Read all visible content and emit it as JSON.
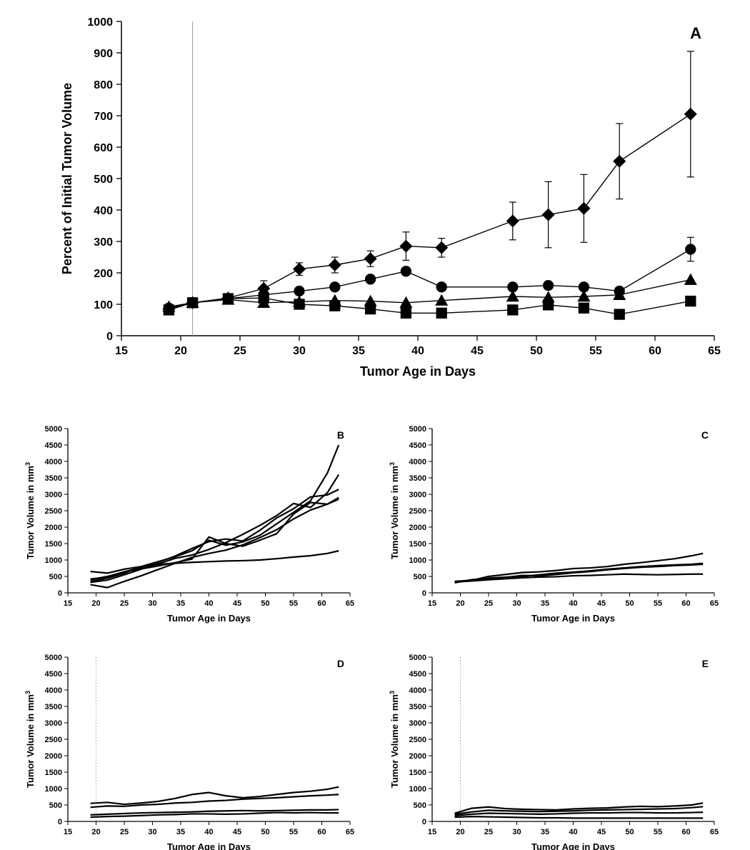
{
  "panelA": {
    "type": "line-with-errorbars",
    "label": "A",
    "label_fontsize": 22,
    "xlabel": "Tumor Age in Days",
    "ylabel": "Percent of Initial Tumor Volume",
    "xlabel_fontsize": 18,
    "ylabel_fontsize": 18,
    "tick_fontsize": 16,
    "xlim": [
      15,
      65
    ],
    "ylim": [
      0,
      1000
    ],
    "xtick_step": 5,
    "ytick_step": 100,
    "vline_x": 21,
    "vline_color": "#9a9a9a",
    "background_color": "#ffffff",
    "axis_color": "#000000",
    "marker_size": 9,
    "line_width": 1.4,
    "series": [
      {
        "name": "diamond",
        "marker": "diamond",
        "color": "#000000",
        "x": [
          19,
          21,
          24,
          27,
          30,
          33,
          36,
          39,
          42,
          48,
          51,
          54,
          57,
          63
        ],
        "y": [
          85,
          105,
          120,
          150,
          212,
          225,
          245,
          285,
          280,
          365,
          385,
          405,
          555,
          705
        ],
        "err": [
          0,
          0,
          0,
          25,
          20,
          25,
          25,
          45,
          30,
          60,
          105,
          108,
          120,
          200
        ]
      },
      {
        "name": "circle",
        "marker": "circle",
        "color": "#000000",
        "x": [
          19,
          21,
          24,
          27,
          30,
          33,
          36,
          39,
          42,
          48,
          51,
          54,
          57,
          63
        ],
        "y": [
          88,
          105,
          118,
          130,
          142,
          155,
          180,
          205,
          155,
          155,
          160,
          155,
          142,
          275
        ],
        "err": [
          0,
          0,
          0,
          0,
          0,
          0,
          0,
          0,
          0,
          0,
          0,
          0,
          0,
          38
        ]
      },
      {
        "name": "triangle",
        "marker": "triangle",
        "color": "#000000",
        "x": [
          19,
          21,
          24,
          27,
          30,
          33,
          36,
          39,
          42,
          48,
          51,
          54,
          57,
          63
        ],
        "y": [
          92,
          105,
          115,
          105,
          108,
          112,
          110,
          105,
          112,
          125,
          122,
          125,
          130,
          178
        ],
        "err": [
          0,
          0,
          0,
          0,
          0,
          0,
          0,
          0,
          0,
          0,
          0,
          0,
          0,
          0
        ]
      },
      {
        "name": "square",
        "marker": "square",
        "color": "#000000",
        "x": [
          19,
          21,
          24,
          27,
          30,
          33,
          36,
          39,
          42,
          48,
          51,
          54,
          57,
          63
        ],
        "y": [
          82,
          105,
          118,
          120,
          100,
          95,
          85,
          72,
          72,
          82,
          98,
          88,
          68,
          110
        ],
        "err": [
          0,
          0,
          0,
          0,
          0,
          0,
          0,
          0,
          0,
          0,
          0,
          0,
          0,
          0
        ]
      }
    ]
  },
  "smallPanels": {
    "xlabel": "Tumor Age in Days",
    "ylabel": "Tumor Volume in mm",
    "ylabel_sup": "3",
    "xlabel_fontsize": 13,
    "ylabel_fontsize": 13,
    "tick_fontsize": 11,
    "label_fontsize": 14,
    "xlim": [
      15,
      65
    ],
    "ylim": [
      0,
      5000
    ],
    "xtick_step": 5,
    "ytick_step": 500,
    "background_color": "#ffffff",
    "axis_color": "#000000",
    "line_color": "#000000",
    "line_width": 2.2,
    "panels": [
      {
        "label": "B",
        "vline_x": null,
        "series": [
          {
            "x": [
              19,
              22,
              25,
              28,
              31,
              34,
              37,
              40,
              43,
              46,
              49,
              52,
              55,
              58,
              61,
              63
            ],
            "y": [
              350,
              450,
              600,
              800,
              950,
              1100,
              1280,
              1600,
              1450,
              1550,
              1750,
              2100,
              2450,
              2800,
              3650,
              4500
            ]
          },
          {
            "x": [
              19,
              22,
              25,
              28,
              31,
              34,
              37,
              40,
              43,
              46,
              49,
              52,
              55,
              58,
              61,
              63
            ],
            "y": [
              320,
              390,
              550,
              720,
              880,
              1050,
              1150,
              1320,
              1530,
              1780,
              2050,
              2350,
              2720,
              2600,
              3050,
              3600
            ]
          },
          {
            "x": [
              19,
              22,
              25,
              28,
              31,
              34,
              37,
              40,
              43,
              46,
              49,
              52,
              55,
              58,
              61,
              63
            ],
            "y": [
              420,
              480,
              640,
              770,
              930,
              1120,
              1350,
              1560,
              1640,
              1580,
              1900,
              2280,
              2560,
              2920,
              2980,
              3150
            ]
          },
          {
            "x": [
              19,
              22,
              25,
              28,
              31,
              34,
              37,
              40,
              43,
              46,
              49,
              52,
              55,
              58,
              61,
              63
            ],
            "y": [
              250,
              160,
              350,
              520,
              710,
              900,
              1080,
              1200,
              1300,
              1460,
              1680,
              1920,
              2250,
              2520,
              2700,
              2850
            ]
          },
          {
            "x": [
              19,
              22,
              25,
              28,
              31,
              34,
              37,
              40,
              43,
              46,
              49,
              52,
              55,
              58,
              61,
              63
            ],
            "y": [
              650,
              600,
              720,
              800,
              870,
              900,
              930,
              950,
              970,
              980,
              1000,
              1040,
              1090,
              1130,
              1200,
              1280
            ]
          },
          {
            "x": [
              19,
              22,
              25,
              28,
              31,
              34,
              37,
              40,
              43,
              46,
              49,
              52,
              55,
              58,
              61,
              63
            ],
            "y": [
              400,
              500,
              640,
              730,
              820,
              920,
              1030,
              1700,
              1500,
              1420,
              1600,
              1800,
              2400,
              2750,
              2700,
              2900
            ]
          }
        ]
      },
      {
        "label": "C",
        "vline_x": null,
        "series": [
          {
            "x": [
              19,
              22,
              25,
              28,
              31,
              34,
              37,
              40,
              43,
              46,
              49,
              52,
              55,
              58,
              61,
              63
            ],
            "y": [
              350,
              380,
              500,
              560,
              620,
              640,
              680,
              740,
              760,
              800,
              870,
              920,
              980,
              1040,
              1130,
              1200
            ]
          },
          {
            "x": [
              19,
              22,
              25,
              28,
              31,
              34,
              37,
              40,
              43,
              46,
              49,
              52,
              55,
              58,
              61,
              63
            ],
            "y": [
              320,
              400,
              450,
              480,
              500,
              550,
              600,
              630,
              670,
              720,
              760,
              800,
              830,
              850,
              870,
              900
            ]
          },
          {
            "x": [
              19,
              22,
              25,
              28,
              31,
              34,
              37,
              40,
              43,
              46,
              49,
              52,
              55,
              58,
              61,
              63
            ],
            "y": [
              330,
              360,
              400,
              430,
              460,
              480,
              490,
              520,
              530,
              550,
              570,
              560,
              550,
              560,
              570,
              570
            ]
          },
          {
            "x": [
              19,
              22,
              25,
              28,
              31,
              34,
              37,
              40,
              43,
              46,
              49,
              52,
              55,
              58,
              61,
              63
            ],
            "y": [
              310,
              390,
              420,
              470,
              530,
              520,
              560,
              610,
              650,
              700,
              740,
              780,
              800,
              830,
              850,
              870
            ]
          }
        ]
      },
      {
        "label": "D",
        "vline_x": 20,
        "series": [
          {
            "x": [
              19,
              22,
              25,
              28,
              31,
              34,
              37,
              40,
              43,
              46,
              49,
              52,
              55,
              58,
              61,
              63
            ],
            "y": [
              550,
              580,
              520,
              560,
              610,
              700,
              820,
              880,
              780,
              720,
              760,
              820,
              880,
              920,
              980,
              1050
            ]
          },
          {
            "x": [
              19,
              22,
              25,
              28,
              31,
              34,
              37,
              40,
              43,
              46,
              49,
              52,
              55,
              58,
              61,
              63
            ],
            "y": [
              430,
              470,
              460,
              500,
              520,
              560,
              580,
              620,
              640,
              680,
              700,
              720,
              750,
              780,
              800,
              820
            ]
          },
          {
            "x": [
              19,
              22,
              25,
              28,
              31,
              34,
              37,
              40,
              43,
              46,
              49,
              52,
              55,
              58,
              61,
              63
            ],
            "y": [
              200,
              220,
              240,
              260,
              270,
              280,
              290,
              310,
              320,
              330,
              320,
              330,
              340,
              350,
              350,
              360
            ]
          },
          {
            "x": [
              19,
              22,
              25,
              28,
              31,
              34,
              37,
              40,
              43,
              46,
              49,
              52,
              55,
              58,
              61,
              63
            ],
            "y": [
              130,
              150,
              160,
              180,
              200,
              210,
              230,
              230,
              220,
              230,
              250,
              270,
              260,
              270,
              260,
              260
            ]
          }
        ]
      },
      {
        "label": "E",
        "vline_x": 20,
        "series": [
          {
            "x": [
              19,
              22,
              25,
              28,
              31,
              34,
              37,
              40,
              43,
              46,
              49,
              52,
              55,
              58,
              61,
              63
            ],
            "y": [
              250,
              400,
              440,
              390,
              370,
              360,
              350,
              380,
              400,
              410,
              440,
              460,
              450,
              470,
              500,
              560
            ]
          },
          {
            "x": [
              19,
              22,
              25,
              28,
              31,
              34,
              37,
              40,
              43,
              46,
              49,
              52,
              55,
              58,
              61,
              63
            ],
            "y": [
              220,
              290,
              340,
              320,
              310,
              300,
              310,
              320,
              340,
              350,
              360,
              370,
              380,
              390,
              420,
              450
            ]
          },
          {
            "x": [
              19,
              22,
              25,
              28,
              31,
              34,
              37,
              40,
              43,
              46,
              49,
              52,
              55,
              58,
              61,
              63
            ],
            "y": [
              180,
              220,
              250,
              240,
              230,
              220,
              230,
              250,
              260,
              260,
              270,
              270,
              260,
              260,
              270,
              280
            ]
          },
          {
            "x": [
              19,
              22,
              25,
              28,
              31,
              34,
              37,
              40,
              43,
              46,
              49,
              52,
              55,
              58,
              61,
              63
            ],
            "y": [
              130,
              150,
              140,
              130,
              120,
              110,
              110,
              100,
              100,
              100,
              100,
              100,
              100,
              100,
              100,
              100
            ]
          }
        ]
      }
    ]
  }
}
